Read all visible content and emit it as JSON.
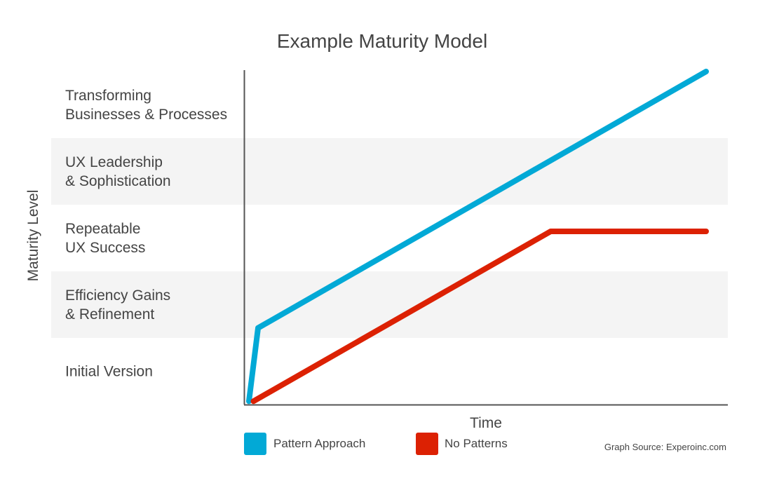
{
  "chart_data": {
    "type": "line",
    "title": "Example Maturity Model",
    "xlabel": "Time",
    "ylabel": "Maturity Level",
    "levels": [
      [
        "Initial Version"
      ],
      [
        "Efficiency Gains",
        "& Refinement"
      ],
      [
        "Repeatable",
        "UX Success"
      ],
      [
        "UX Leadership",
        "& Sophistication"
      ],
      [
        "Transforming",
        "Businesses & Processes"
      ]
    ],
    "xlim": [
      0,
      100
    ],
    "ylim": [
      0,
      5
    ],
    "series": [
      {
        "name": "Pattern Approach",
        "color": "#02a9d6",
        "points": [
          [
            0,
            0.05
          ],
          [
            2,
            1.15
          ],
          [
            100,
            5.0
          ]
        ]
      },
      {
        "name": "No Patterns",
        "color": "#dc2103",
        "points": [
          [
            1,
            0.05
          ],
          [
            66,
            2.6
          ],
          [
            100,
            2.6
          ]
        ]
      }
    ],
    "band_colors": {
      "shaded": "#f4f4f4"
    },
    "source_note": "Graph Source: Experoinc.com"
  }
}
